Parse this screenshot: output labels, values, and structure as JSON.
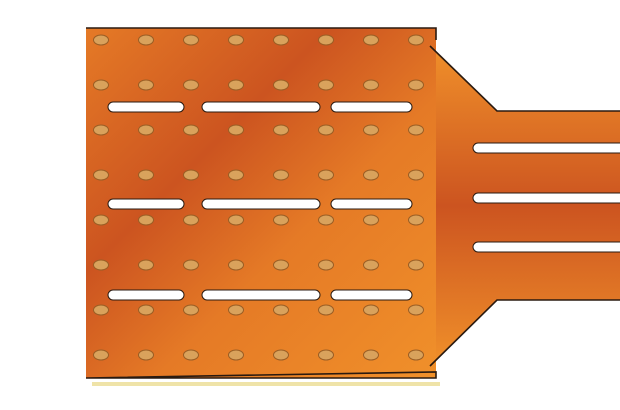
{
  "component": {
    "kind": "flexible-printed-circuit",
    "colors": {
      "substrate_light": "#f0902a",
      "substrate_mid": "#e57a26",
      "substrate_dark": "#cc5420",
      "outline": "#2a1a10",
      "pad_fill": "#d9a25c",
      "pad_stroke": "#9a5e25",
      "slot_fill": "#ffffff",
      "shadow": "#efe3a8"
    },
    "pad_grid": {
      "rows": 8,
      "columns": 8
    },
    "panel_slots": {
      "rows": 3,
      "per_row": 3
    },
    "tail_slots": {
      "count": 3
    }
  }
}
